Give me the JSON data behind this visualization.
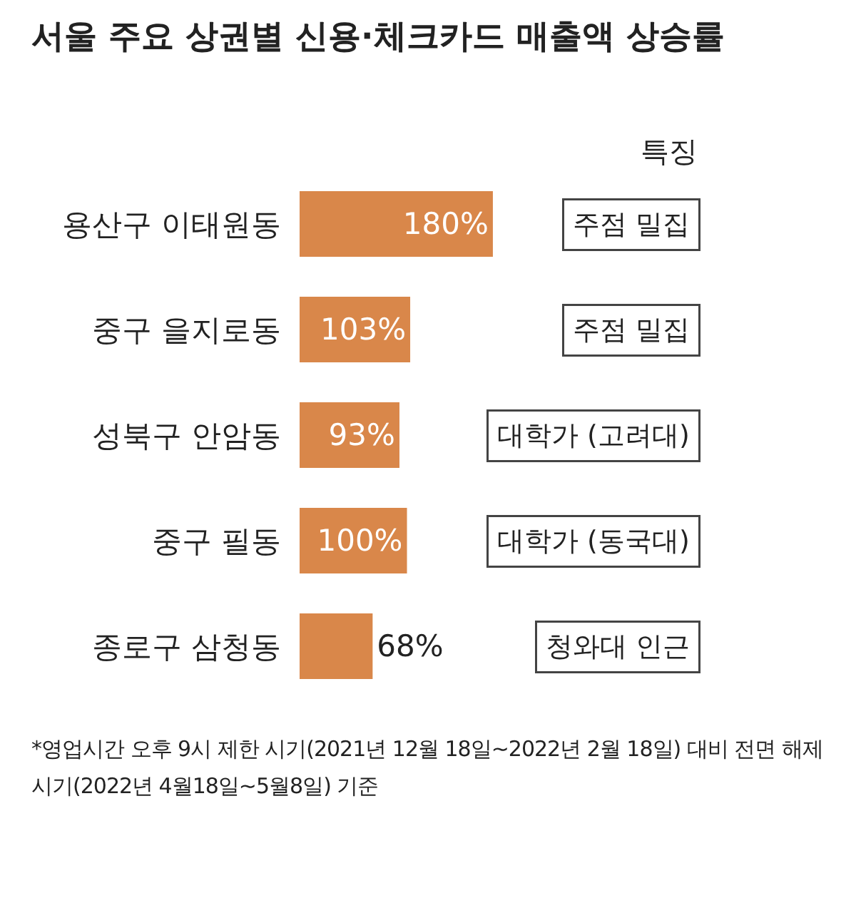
{
  "chart_data": {
    "type": "bar",
    "orientation": "horizontal",
    "title": "서울 주요 상권별 신용·체크카드 매출액 상승률",
    "categories": [
      "용산구 이태원동",
      "중구 을지로동",
      "성북구 안암동",
      "중구 필동",
      "종로구 삼청동"
    ],
    "values": [
      180,
      103,
      93,
      100,
      68
    ],
    "value_labels": [
      "180%",
      "103%",
      "93%",
      "100%",
      "68%"
    ],
    "color": "#d9874a",
    "tick_labels": "y",
    "annotations": [
      "특징",
      "주점 밀집",
      "주점 밀집",
      "대학가 (고려대)",
      "대학가 (동국대)",
      "청와대 인근",
      "*영업시간 오후 9시 제한 시기(2021년 12월 18일~2022년 2월 18일) 대비 전면 해제 시기(2022년 4월18일~5월8일) 기준"
    ]
  }
}
